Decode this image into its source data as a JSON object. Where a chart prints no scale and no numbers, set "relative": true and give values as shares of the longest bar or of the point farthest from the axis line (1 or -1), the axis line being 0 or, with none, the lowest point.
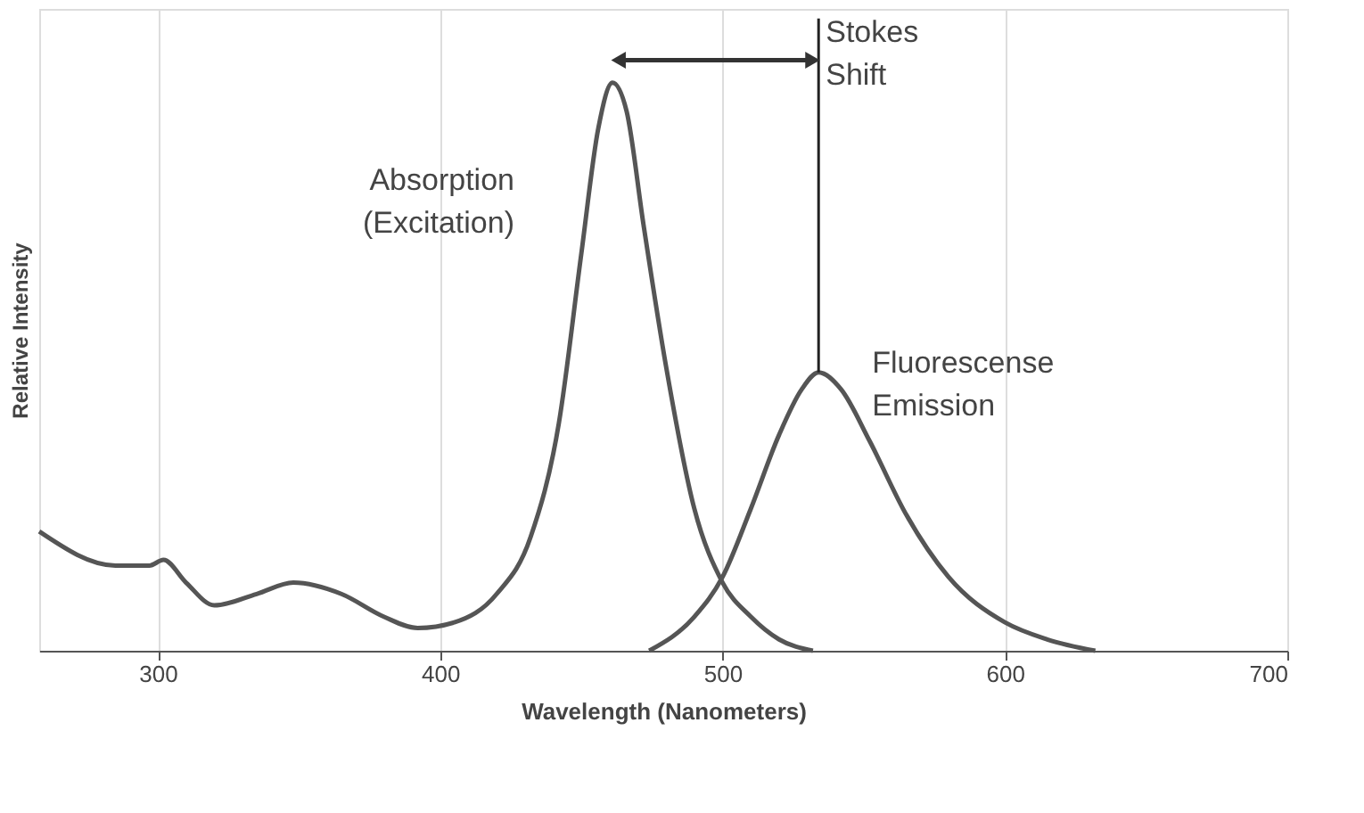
{
  "chart_data": {
    "type": "line",
    "relative": true,
    "xlabel": "Wavelength (Nanometers)",
    "ylabel": "Relative Intensity",
    "xlim": [
      258,
      700
    ],
    "xticks": [
      300,
      400,
      500,
      600,
      700
    ],
    "grid": "x",
    "line_style": "solid",
    "marker": "none",
    "series": [
      {
        "color": "#555555",
        "x": [
          258,
          285,
          297,
          302,
          310,
          320,
          335,
          348,
          365,
          380,
          392,
          405,
          420,
          432,
          442,
          450,
          456,
          461,
          466,
          472,
          480,
          490,
          500,
          510,
          520,
          532
        ],
        "values": [
          0.21,
          0.15,
          0.15,
          0.16,
          0.12,
          0.08,
          0.1,
          0.12,
          0.1,
          0.06,
          0.04,
          0.05,
          0.1,
          0.2,
          0.4,
          0.7,
          0.92,
          1.0,
          0.95,
          0.75,
          0.5,
          0.25,
          0.12,
          0.06,
          0.02,
          0
        ]
      },
      {
        "color": "#555555",
        "x": [
          474,
          490,
          500,
          510,
          520,
          528,
          534,
          542,
          552,
          565,
          580,
          600,
          615,
          632
        ],
        "values": [
          0,
          0.06,
          0.13,
          0.25,
          0.38,
          0.46,
          0.49,
          0.46,
          0.37,
          0.24,
          0.13,
          0.05,
          0.02,
          0
        ]
      }
    ],
    "ref_lines": [
      {
        "axis": "x",
        "value": 534,
        "label": "Stokes\nShift",
        "color": "#222222"
      }
    ],
    "annotations": [
      "Absorption\n(Excitation)",
      "Fluorescense\nEmission"
    ]
  }
}
